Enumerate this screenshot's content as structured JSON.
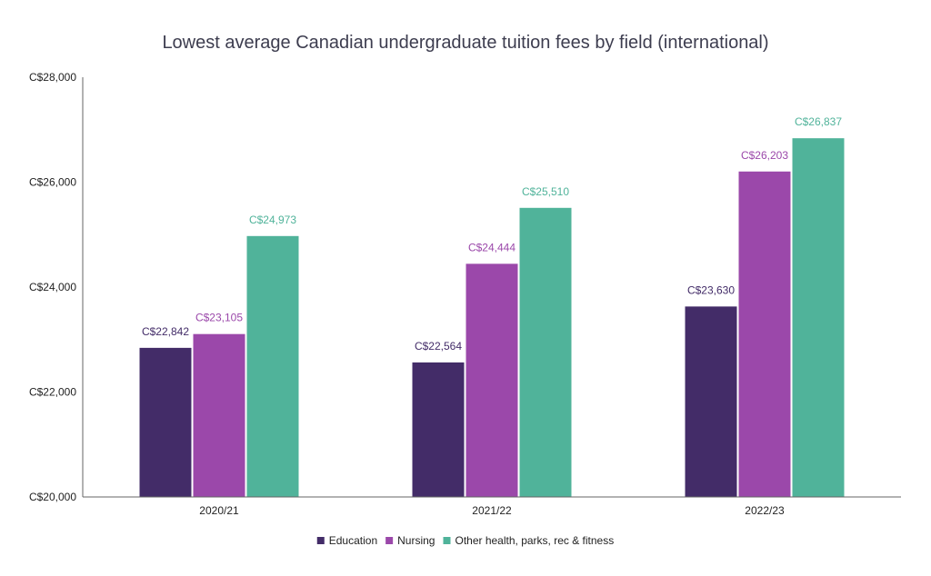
{
  "chart_data": {
    "type": "bar",
    "title": "Lowest average Canadian undergraduate tuition fees by field (international)",
    "xlabel": "",
    "ylabel": "",
    "categories": [
      "2020/21",
      "2021/22",
      "2022/23"
    ],
    "ylim": [
      20000,
      28000
    ],
    "yticks": [
      20000,
      22000,
      24000,
      26000,
      28000
    ],
    "ytick_labels": [
      "C$20,000",
      "C$22,000",
      "C$24,000",
      "C$26,000",
      "C$28,000"
    ],
    "grid": false,
    "legend_position": "bottom-center",
    "series": [
      {
        "name": "Education",
        "color": "#432c68",
        "values": [
          22842,
          22564,
          23630
        ],
        "labels": [
          "C$22,842",
          "C$22,564",
          "C$23,630"
        ]
      },
      {
        "name": "Nursing",
        "color": "#9b48aa",
        "values": [
          23105,
          24444,
          26203
        ],
        "labels": [
          "C$23,105",
          "C$24,444",
          "C$26,203"
        ]
      },
      {
        "name": "Other health, parks, rec & fitness",
        "color": "#50b39a",
        "values": [
          24973,
          25510,
          26837
        ],
        "labels": [
          "C$24,973",
          "C$25,510",
          "C$26,837"
        ]
      }
    ]
  }
}
